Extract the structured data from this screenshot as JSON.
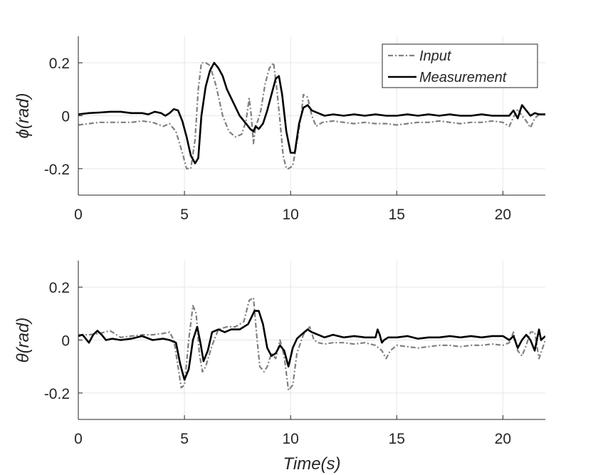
{
  "chart_data": [
    {
      "type": "line",
      "title": "",
      "xlabel": "",
      "ylabel": "ϕ(rad)",
      "xlim": [
        0,
        22
      ],
      "ylim": [
        -0.3,
        0.3
      ],
      "xticks": [
        0,
        5,
        10,
        15,
        20
      ],
      "xtick_labels": [
        "0",
        "5",
        "10",
        "15",
        "20"
      ],
      "yticks": [
        0.2,
        0,
        -0.2
      ],
      "ytick_labels": [
        "0.2",
        "0",
        "-0.2"
      ],
      "grid": true,
      "legend": {
        "placement": "top-right",
        "entries": [
          "Input",
          "Measurement"
        ]
      },
      "series": [
        {
          "name": "Input",
          "style": "dashdot",
          "color": "#808080",
          "x": [
            0,
            0.5,
            1,
            1.5,
            2,
            2.5,
            3,
            3.5,
            4,
            4.3,
            4.6,
            4.9,
            5.1,
            5.3,
            5.5,
            5.65,
            5.8,
            6.0,
            6.2,
            6.5,
            6.8,
            7.1,
            7.4,
            7.7,
            7.9,
            8.05,
            8.15,
            8.25,
            8.35,
            8.45,
            8.6,
            8.8,
            9.0,
            9.2,
            9.35,
            9.5,
            9.65,
            9.8,
            9.9,
            10.1,
            10.3,
            10.5,
            10.6,
            10.8,
            11.0,
            11.2,
            11.5,
            12,
            12.5,
            13,
            13.5,
            14,
            14.5,
            15,
            15.5,
            16,
            16.5,
            17,
            17.5,
            18,
            18.5,
            19,
            19.5,
            20,
            20.3,
            20.5,
            20.7,
            20.9,
            21.1,
            21.3,
            21.5,
            21.7,
            22
          ],
          "y": [
            -0.035,
            -0.03,
            -0.025,
            -0.025,
            -0.025,
            -0.025,
            -0.02,
            -0.025,
            -0.04,
            -0.03,
            -0.06,
            -0.14,
            -0.2,
            -0.2,
            -0.09,
            0.1,
            0.2,
            0.2,
            0.19,
            0.11,
            0.0,
            -0.06,
            -0.08,
            -0.07,
            -0.02,
            0.065,
            0.0,
            -0.105,
            -0.04,
            -0.02,
            0.02,
            0.12,
            0.18,
            0.2,
            0.1,
            -0.02,
            -0.15,
            -0.2,
            -0.2,
            -0.19,
            -0.1,
            0.0,
            0.08,
            0.07,
            0.0,
            -0.04,
            -0.025,
            -0.02,
            -0.025,
            -0.03,
            -0.025,
            -0.03,
            -0.03,
            -0.035,
            -0.03,
            -0.025,
            -0.025,
            -0.02,
            -0.025,
            -0.03,
            -0.025,
            -0.025,
            -0.02,
            -0.025,
            -0.04,
            -0.005,
            0.025,
            0.0,
            -0.02,
            -0.045,
            -0.01,
            0.005,
            0.005
          ]
        },
        {
          "name": "Measurement",
          "style": "solid",
          "color": "#000000",
          "x": [
            0,
            0.5,
            1,
            1.5,
            2,
            2.5,
            3,
            3.3,
            3.6,
            3.9,
            4.1,
            4.3,
            4.5,
            4.7,
            4.9,
            5.1,
            5.3,
            5.5,
            5.65,
            5.8,
            6.0,
            6.2,
            6.4,
            6.6,
            6.8,
            7.0,
            7.3,
            7.6,
            7.9,
            8.1,
            8.25,
            8.35,
            8.5,
            8.7,
            8.9,
            9.1,
            9.3,
            9.45,
            9.6,
            9.8,
            10.0,
            10.2,
            10.4,
            10.6,
            10.8,
            11.0,
            11.3,
            11.6,
            12,
            12.5,
            13,
            13.5,
            14,
            14.5,
            15,
            15.5,
            16,
            16.5,
            17,
            17.5,
            18,
            18.5,
            19,
            19.5,
            20,
            20.3,
            20.5,
            20.7,
            20.9,
            21.1,
            21.3,
            21.5,
            21.7,
            22
          ],
          "y": [
            0.005,
            0.01,
            0.012,
            0.015,
            0.015,
            0.01,
            0.01,
            0.005,
            0.015,
            0.01,
            0.0,
            0.01,
            0.025,
            0.02,
            -0.02,
            -0.08,
            -0.15,
            -0.18,
            -0.16,
            0.0,
            0.11,
            0.17,
            0.2,
            0.18,
            0.15,
            0.1,
            0.05,
            0.0,
            -0.03,
            -0.05,
            -0.06,
            -0.04,
            -0.05,
            -0.03,
            0.02,
            0.08,
            0.14,
            0.15,
            0.08,
            -0.06,
            -0.14,
            -0.14,
            -0.03,
            0.03,
            0.04,
            0.02,
            0.01,
            0.0,
            0.005,
            0.0,
            0.005,
            0.0,
            0.005,
            0.0,
            0.0,
            0.005,
            0.0,
            0.005,
            0.0,
            0.005,
            0.0,
            0.0,
            0.005,
            0.0,
            0.0,
            0.0,
            0.02,
            -0.01,
            0.04,
            0.02,
            0.0,
            0.01,
            0.005,
            0.005
          ]
        }
      ]
    },
    {
      "type": "line",
      "title": "",
      "xlabel": "Time(s)",
      "ylabel": "θ(rad)",
      "xlim": [
        0,
        22
      ],
      "ylim": [
        -0.3,
        0.3
      ],
      "xticks": [
        0,
        5,
        10,
        15,
        20
      ],
      "xtick_labels": [
        "0",
        "5",
        "10",
        "15",
        "20"
      ],
      "yticks": [
        0.2,
        0,
        -0.2
      ],
      "ytick_labels": [
        "0.2",
        "0",
        "-0.2"
      ],
      "grid": true,
      "series": [
        {
          "name": "Input",
          "style": "dashdot",
          "color": "#808080",
          "x": [
            0,
            0.5,
            1,
            1.5,
            2,
            2.5,
            3,
            3.5,
            4,
            4.3,
            4.5,
            4.7,
            4.85,
            5.0,
            5.2,
            5.4,
            5.55,
            5.7,
            5.85,
            6.0,
            6.3,
            6.6,
            7.0,
            7.4,
            7.8,
            8.05,
            8.25,
            8.4,
            8.55,
            8.75,
            8.9,
            9.1,
            9.3,
            9.5,
            9.7,
            9.9,
            10.1,
            10.3,
            10.6,
            10.9,
            11.1,
            11.3,
            11.6,
            12,
            12.5,
            13,
            13.5,
            14,
            14.3,
            14.5,
            14.7,
            15,
            15.5,
            16,
            16.5,
            17,
            17.5,
            18,
            18.5,
            19,
            19.5,
            20,
            20.3,
            20.5,
            20.7,
            20.9,
            21.1,
            21.3,
            21.5,
            21.7,
            22
          ],
          "y": [
            0.02,
            0.02,
            0.025,
            0.035,
            0.01,
            0.015,
            0.02,
            0.02,
            0.025,
            0.03,
            0.0,
            -0.1,
            -0.18,
            -0.17,
            0.0,
            0.13,
            0.1,
            -0.05,
            -0.12,
            -0.1,
            -0.02,
            0.04,
            0.05,
            0.05,
            0.07,
            0.15,
            0.16,
            0.02,
            -0.1,
            -0.12,
            -0.1,
            -0.05,
            -0.07,
            0.0,
            -0.06,
            -0.19,
            -0.17,
            -0.05,
            0.02,
            0.05,
            0.0,
            -0.01,
            -0.015,
            -0.01,
            -0.01,
            -0.015,
            -0.01,
            -0.02,
            -0.04,
            -0.07,
            -0.04,
            -0.02,
            -0.025,
            -0.03,
            -0.025,
            -0.02,
            -0.02,
            -0.025,
            -0.02,
            -0.02,
            -0.015,
            -0.02,
            -0.01,
            0.03,
            -0.04,
            -0.06,
            -0.02,
            0.03,
            0.03,
            -0.07,
            0.0
          ]
        },
        {
          "name": "Measurement",
          "style": "solid",
          "color": "#000000",
          "x": [
            0,
            0.2,
            0.5,
            0.7,
            0.9,
            1.1,
            1.3,
            1.6,
            2,
            2.5,
            3,
            3.5,
            4,
            4.3,
            4.6,
            4.8,
            5.0,
            5.2,
            5.4,
            5.6,
            5.75,
            5.9,
            6.1,
            6.3,
            6.6,
            6.9,
            7.2,
            7.6,
            8.0,
            8.3,
            8.5,
            8.7,
            8.9,
            9.1,
            9.3,
            9.5,
            9.7,
            9.9,
            10.1,
            10.3,
            10.5,
            10.8,
            11.0,
            11.3,
            11.6,
            12,
            12.5,
            13,
            13.5,
            14,
            14.1,
            14.2,
            14.3,
            14.4,
            14.6,
            15,
            15.5,
            16,
            16.5,
            17,
            17.5,
            18,
            18.5,
            19,
            19.5,
            20,
            20.3,
            20.5,
            20.7,
            20.9,
            21.1,
            21.3,
            21.5,
            21.7,
            21.8,
            22
          ],
          "y": [
            0.015,
            0.02,
            -0.01,
            0.02,
            0.035,
            0.02,
            0.0,
            0.005,
            0.0,
            0.005,
            0.015,
            0.0,
            0.005,
            0.0,
            -0.01,
            -0.09,
            -0.15,
            -0.11,
            0.0,
            0.05,
            -0.01,
            -0.08,
            -0.04,
            0.03,
            0.04,
            0.03,
            0.04,
            0.04,
            0.06,
            0.11,
            0.11,
            0.06,
            -0.03,
            -0.06,
            -0.05,
            -0.02,
            -0.04,
            -0.1,
            -0.03,
            0.005,
            0.02,
            0.04,
            0.03,
            0.02,
            0.01,
            0.02,
            0.01,
            0.015,
            0.01,
            0.01,
            0.04,
            0.02,
            -0.01,
            0.0,
            0.01,
            0.01,
            0.015,
            0.005,
            0.01,
            0.01,
            0.015,
            0.01,
            0.015,
            0.01,
            0.015,
            0.015,
            0.0,
            0.015,
            -0.03,
            0.0,
            0.02,
            0.0,
            -0.04,
            0.04,
            0.0,
            0.015
          ]
        }
      ]
    }
  ]
}
